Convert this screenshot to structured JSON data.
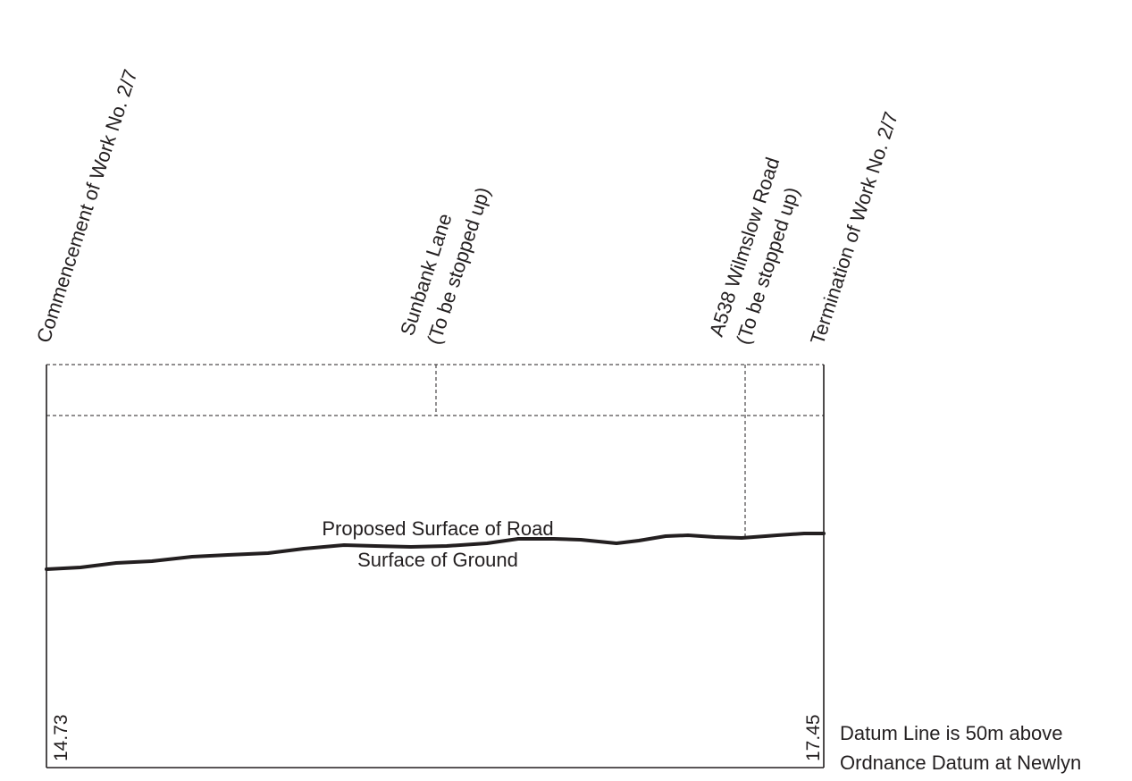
{
  "headings": {
    "commencement": "Commencement of Work No. 2/7",
    "sunbank_line1": "Sunbank Lane",
    "sunbank_line2": "(To be stopped up)",
    "a538_line1": "A538 Wilmslow Road",
    "a538_line2": "(To be stopped up)",
    "termination": "Termination of Work No. 2/7"
  },
  "profile_labels": {
    "proposed": "Proposed Surface of Road",
    "ground": "Surface of Ground"
  },
  "levels": {
    "start": "14.73",
    "end": "17.45"
  },
  "datum_note": {
    "line1": "Datum Line is 50m above",
    "line2": "Ordnance Datum at Newlyn"
  },
  "colors": {
    "ink": "#231f20",
    "background": "#ffffff"
  }
}
